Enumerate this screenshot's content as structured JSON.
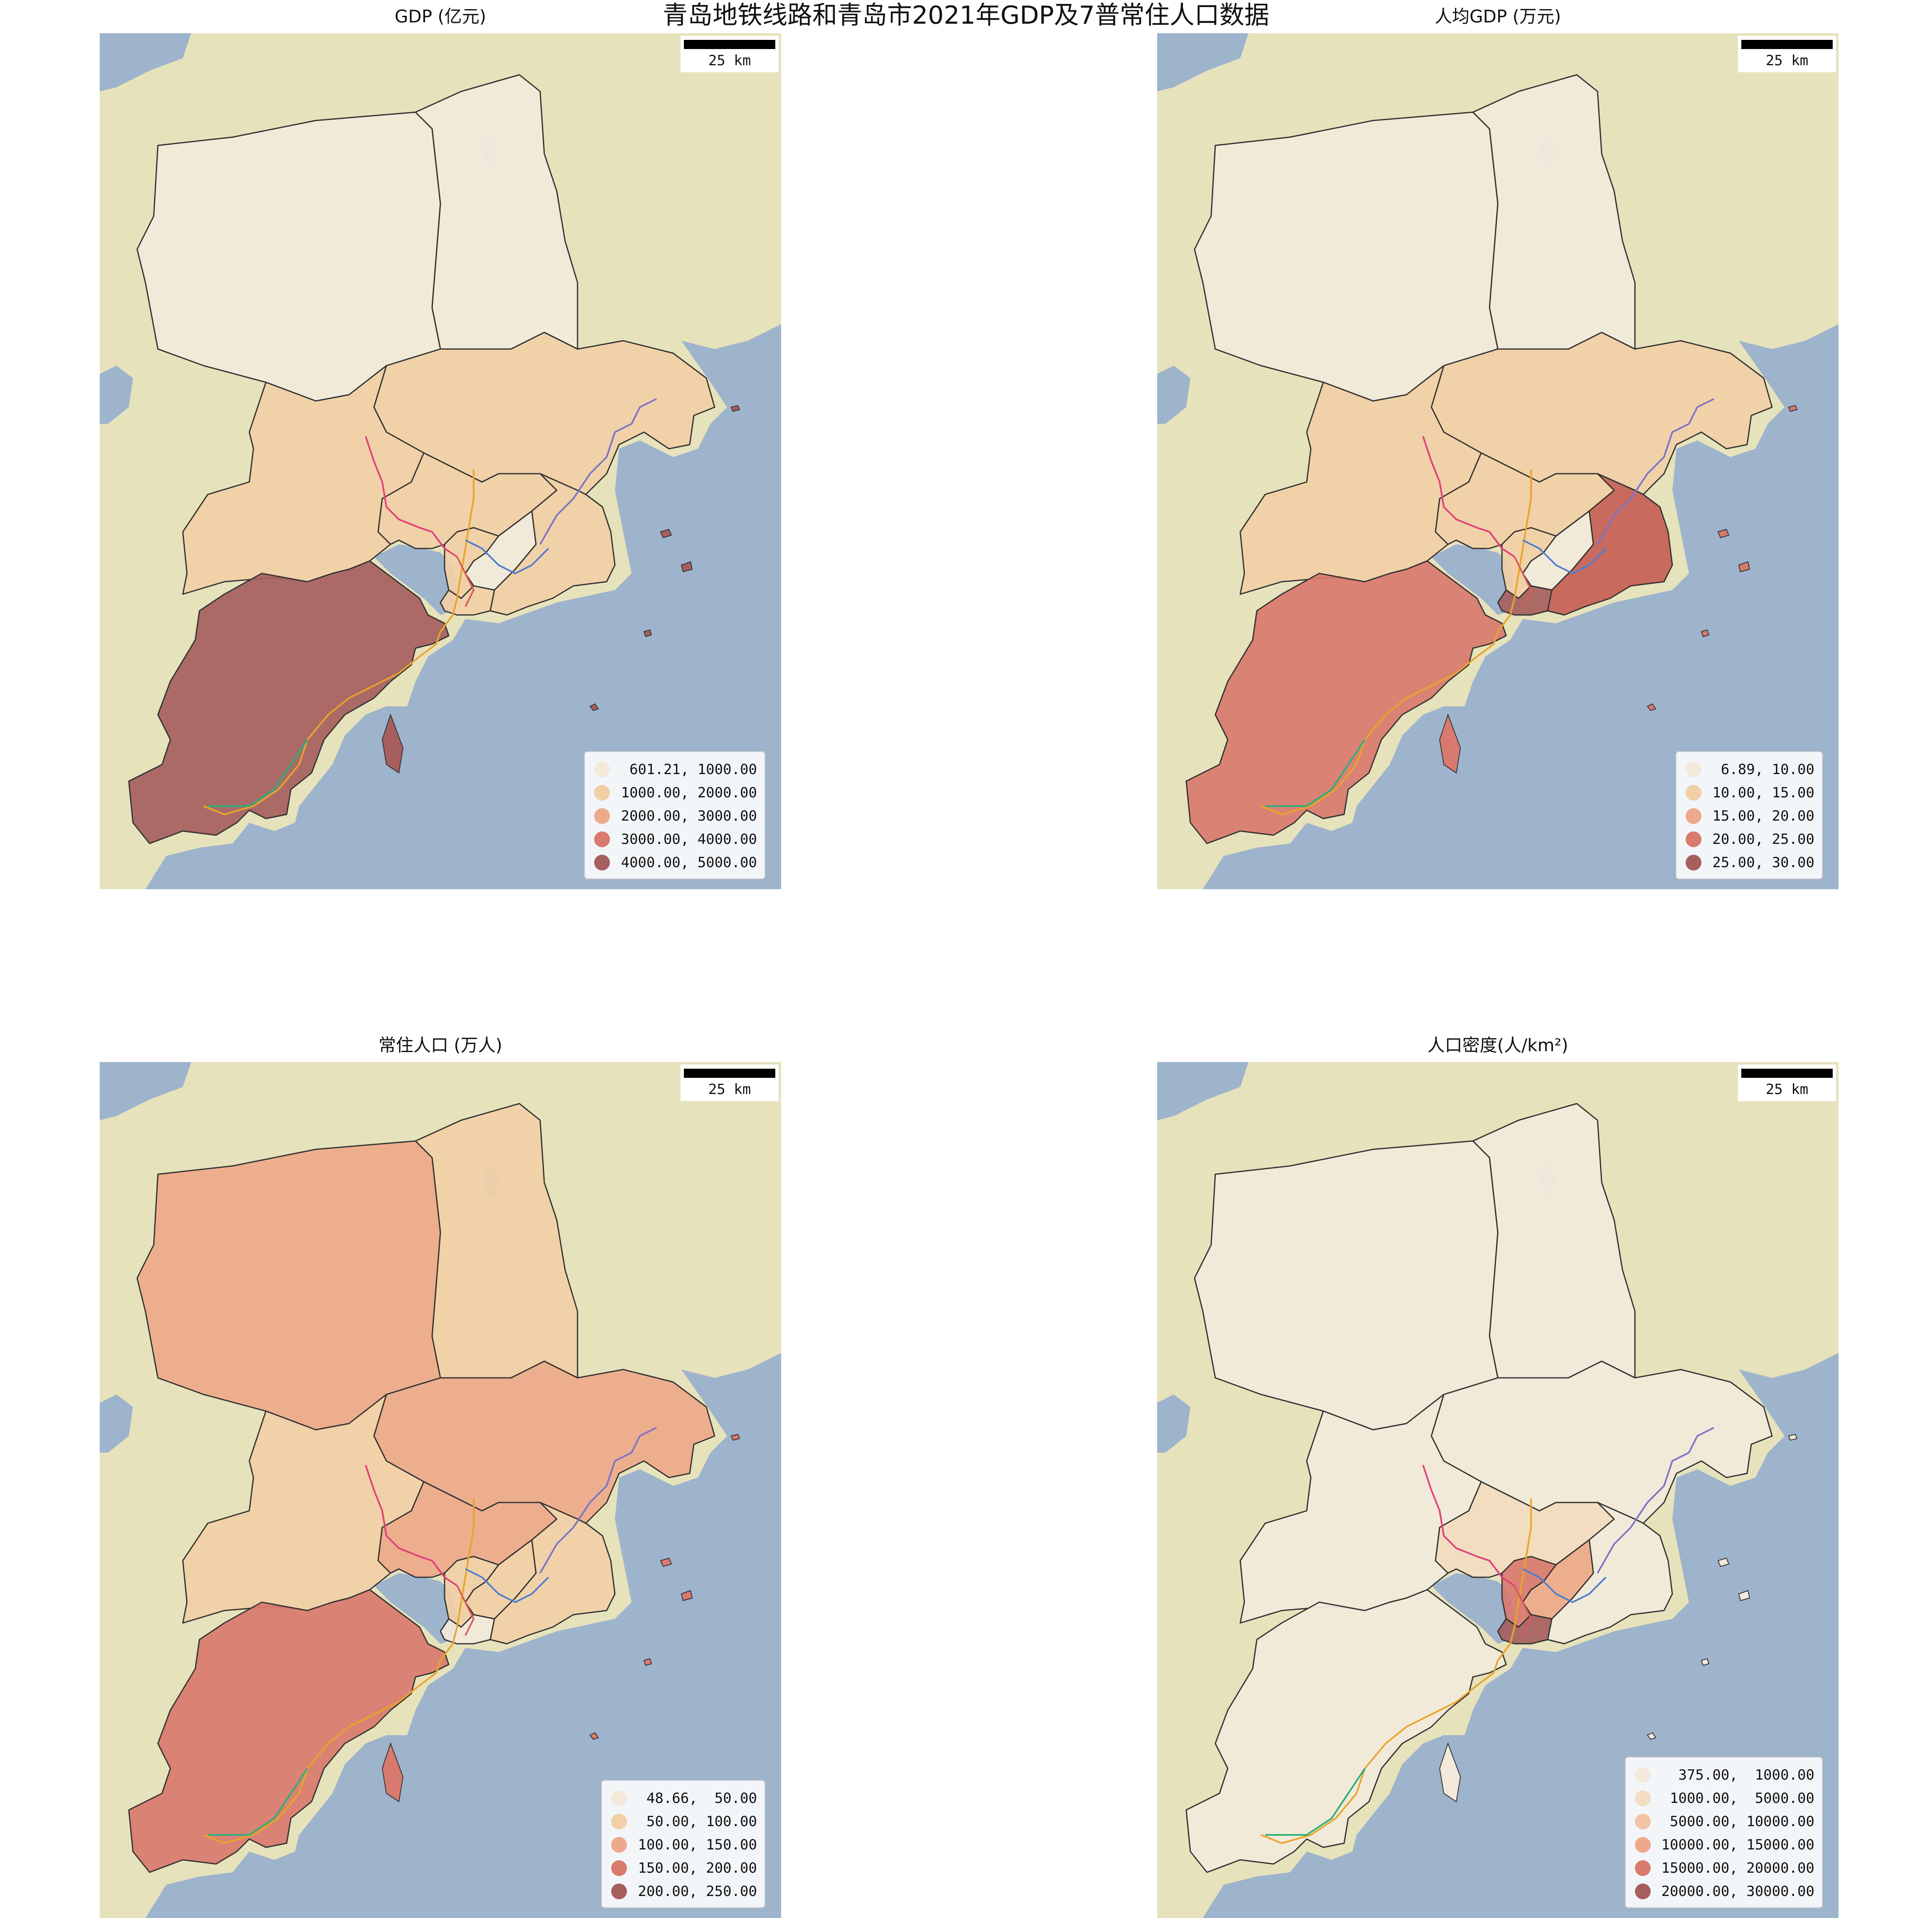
{
  "title": "青岛地铁线路和青岛市2021年GDP及7普常住人口数据",
  "panels": [
    {
      "title": "GDP (亿元)",
      "scalebar": "25 km",
      "legend": [
        "601.21, 1000.00",
        "1000.00, 2000.00",
        "2000.00, 3000.00",
        "3000.00, 4000.00",
        "4000.00, 5000.00"
      ],
      "legend_colors": [
        "#f3eadb",
        "#f2cfa6",
        "#eea98a",
        "#d97a6e",
        "#a65f5e"
      ],
      "fills": {
        "pingdu": "#f3eadb",
        "laixi": "#f3eadb",
        "jimo": "#f2cfa6",
        "jiaozhou": "#f2cfa6",
        "chengyang": "#f2cfa6",
        "huangdao": "#a65f5e",
        "laoshan": "#f2cfa6",
        "shibei": "#f2cfa6",
        "licang": "#f3eadb",
        "shinan": "#f2cfa6"
      }
    },
    {
      "title": "人均GDP (万元)",
      "scalebar": "25 km",
      "legend": [
        "6.89, 10.00",
        "10.00, 15.00",
        "15.00, 20.00",
        "20.00, 25.00",
        "25.00, 30.00"
      ],
      "legend_colors": [
        "#f3eadb",
        "#f2cfa6",
        "#eea98a",
        "#d97a6e",
        "#a65f5e"
      ],
      "fills": {
        "pingdu": "#f3eadb",
        "laixi": "#f3eadb",
        "jimo": "#f2cfa6",
        "jiaozhou": "#f2cfa6",
        "chengyang": "#f2cfa6",
        "huangdao": "#d97a6e",
        "laoshan": "#c65f55",
        "shibei": "#f2cfa6",
        "licang": "#f3eadb",
        "shinan": "#a65f5e"
      }
    },
    {
      "title": "常住人口 (万人)",
      "scalebar": "25 km",
      "legend": [
        "48.66,  50.00",
        " 50.00, 100.00",
        "100.00, 150.00",
        "150.00, 200.00",
        "200.00, 250.00"
      ],
      "legend_colors": [
        "#f3eadb",
        "#f2cfa6",
        "#eea98a",
        "#d97a6e",
        "#a65f5e"
      ],
      "fills": {
        "pingdu": "#eea98a",
        "laixi": "#f2cfa6",
        "jimo": "#eea98a",
        "jiaozhou": "#f2cfa6",
        "chengyang": "#eea98a",
        "huangdao": "#d97a6e",
        "laoshan": "#f2cfa6",
        "shibei": "#f2cfa6",
        "licang": "#f2cfa6",
        "shinan": "#f3eadb"
      }
    },
    {
      "title": "人口密度(人/km²)",
      "scalebar": "25 km",
      "legend": [
        "375.00,  1000.00",
        "1000.00,  5000.00",
        "5000.00, 10000.00",
        "10000.00, 15000.00",
        "15000.00, 20000.00",
        "20000.00, 30000.00"
      ],
      "legend_colors": [
        "#f3eadb",
        "#f3dcc0",
        "#f2c4a6",
        "#eea98a",
        "#d97a6e",
        "#a65f5e"
      ],
      "fills": {
        "pingdu": "#f3eadb",
        "laixi": "#f3eadb",
        "jimo": "#f3eadb",
        "jiaozhou": "#f3eadb",
        "chengyang": "#f3dcc0",
        "huangdao": "#f3eadb",
        "laoshan": "#f3eadb",
        "shibei": "#d97a6e",
        "licang": "#eea98a",
        "shinan": "#a65f5e"
      }
    }
  ]
}
